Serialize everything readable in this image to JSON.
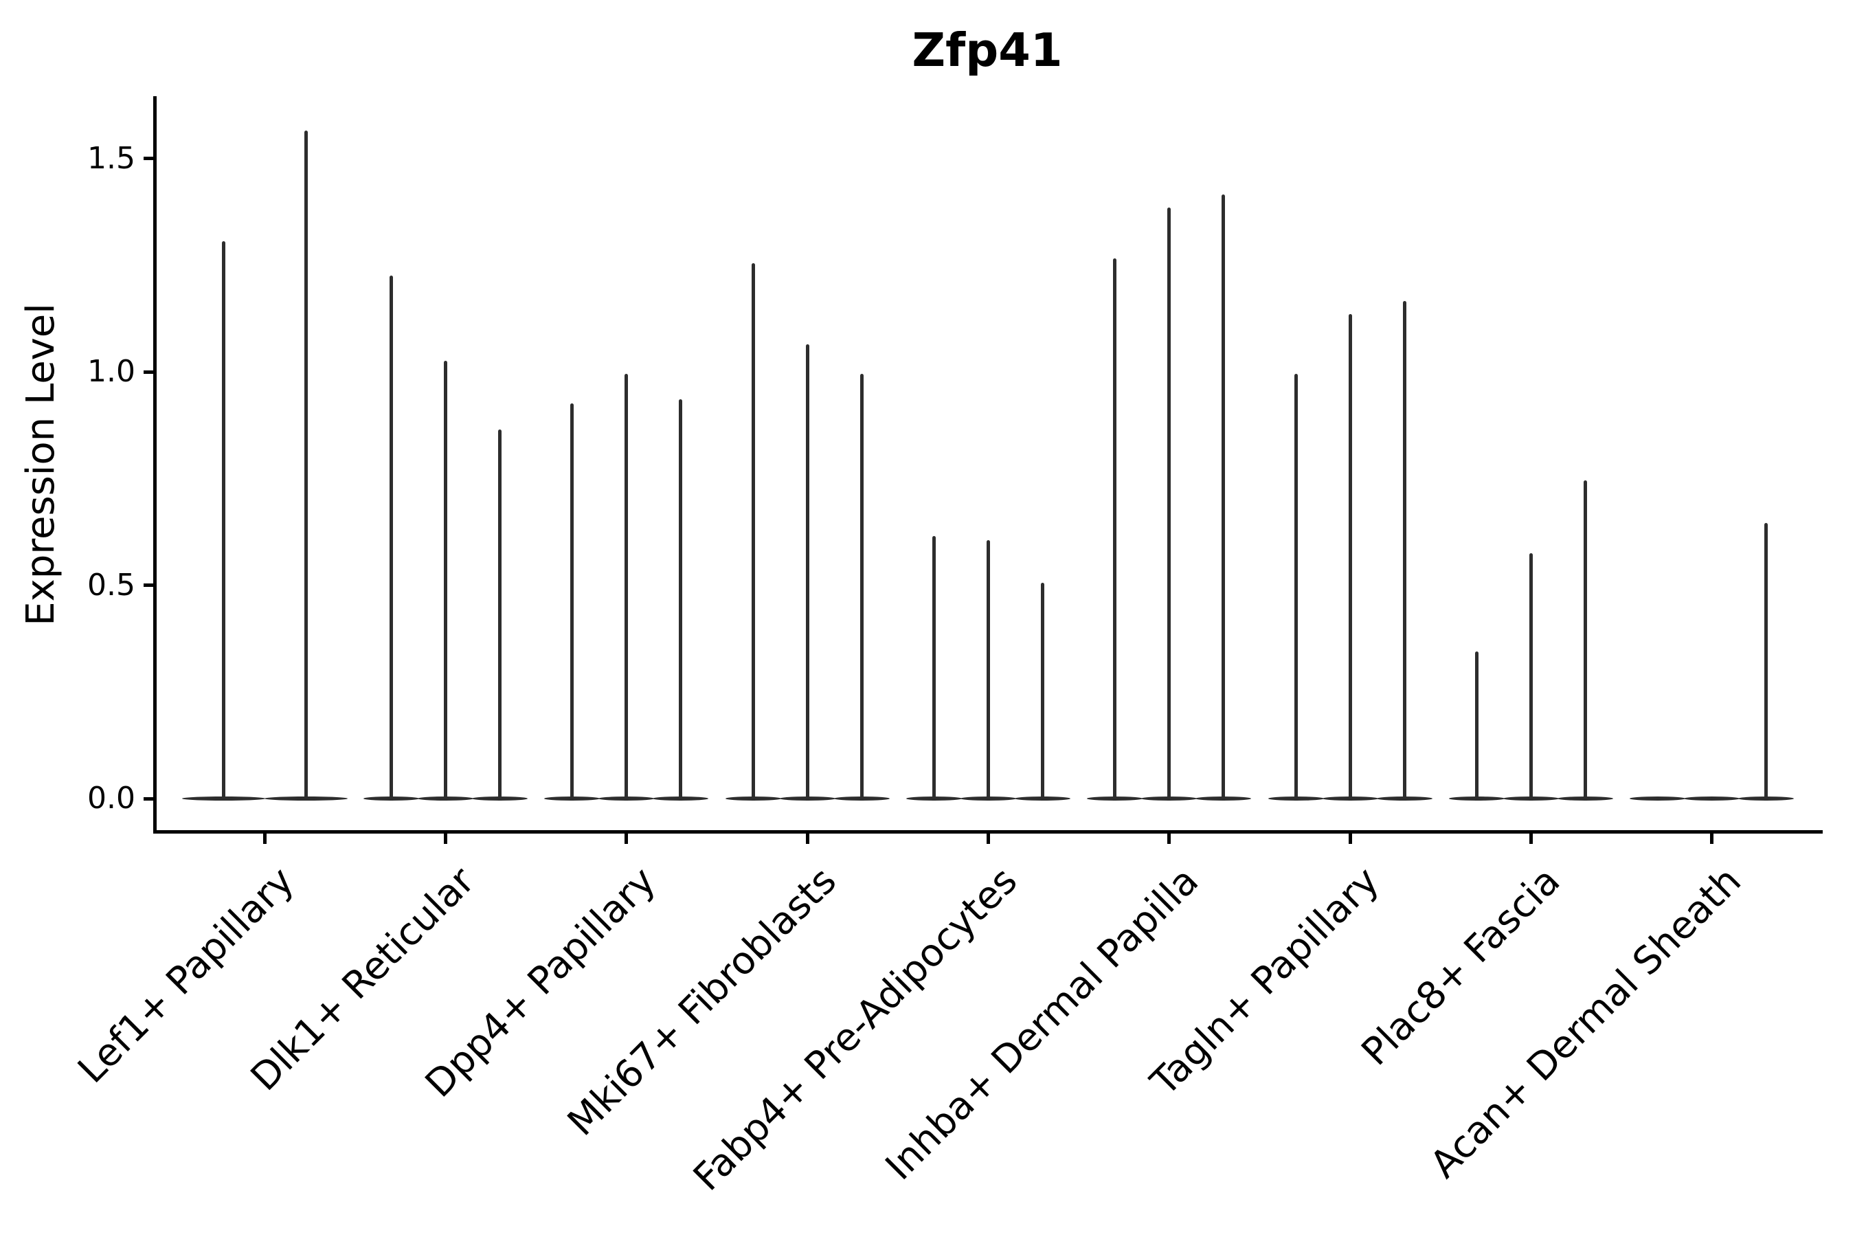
{
  "chart_data": {
    "type": "violin",
    "title": "Zfp41",
    "ylabel": "Expression Level",
    "xlabel": "",
    "yticks": [
      0.0,
      0.5,
      1.0,
      1.5
    ],
    "ytick_labels": [
      "0.0",
      "0.5",
      "1.0",
      "1.5"
    ],
    "ylim": [
      -0.04,
      1.65
    ],
    "grid": false,
    "legend": "none",
    "categories": [
      "Lef1+ Papillary",
      "Dlk1+ Reticular",
      "Dpp4+ Papillary",
      "Mki67+ Fibroblasts",
      "Fabp4+ Pre-Adipocytes",
      "Inhba+ Dermal Papilla",
      "Tagln+ Papillary",
      "Plac8+ Fascia",
      "Acan+ Dermal Sheath"
    ],
    "description": "Stacked-violin style expression plot; each category shows 2-3 extremely narrow violins (density concentrated at 0) whose values below are the maximum expression level reached by each violin spike, in plot units.",
    "groups": [
      {
        "category": "Lef1+ Papillary",
        "violin_max": [
          1.31,
          1.57
        ]
      },
      {
        "category": "Dlk1+ Reticular",
        "violin_max": [
          1.23,
          1.03,
          0.87
        ]
      },
      {
        "category": "Dpp4+ Papillary",
        "violin_max": [
          0.93,
          1.0,
          0.94
        ]
      },
      {
        "category": "Mki67+ Fibroblasts",
        "violin_max": [
          1.26,
          1.07,
          1.0
        ]
      },
      {
        "category": "Fabp4+ Pre-Adipocytes",
        "violin_max": [
          0.62,
          0.61,
          0.51
        ]
      },
      {
        "category": "Inhba+ Dermal Papilla",
        "violin_max": [
          1.27,
          1.39,
          1.42
        ]
      },
      {
        "category": "Tagln+ Papillary",
        "violin_max": [
          1.0,
          1.14,
          1.17
        ]
      },
      {
        "category": "Plac8+ Fascia",
        "violin_max": [
          0.35,
          0.58,
          0.75
        ]
      },
      {
        "category": "Acan+ Dermal Sheath",
        "violin_max": [
          0,
          0,
          0.65
        ]
      }
    ],
    "colors": {
      "violin": "#2d2d2d",
      "axis": "#000000",
      "text": "#000000",
      "background": "#ffffff"
    }
  }
}
